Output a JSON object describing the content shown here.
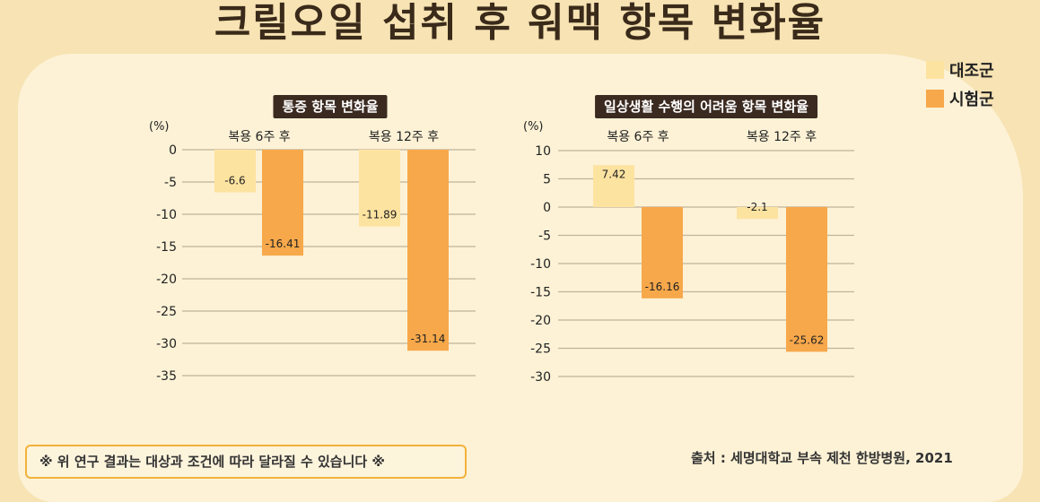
{
  "title": "크릴오일 섭취 후 워맥 항목 변화율",
  "legend": [
    {
      "label": "대조군",
      "color": "#fde3a0"
    },
    {
      "label": "시험군",
      "color": "#f7a84a"
    }
  ],
  "note": "※ 위 연구 결과는 대상과 조건에 따라 달라질 수 있습니다 ※",
  "source": "출처 : 세명대학교 부속 제천 한방병원, 2021",
  "chart_data": [
    {
      "type": "bar",
      "title": "통증 항목 변화율",
      "unit": "(%)",
      "categories": [
        "복용 6주 후",
        "복용 12주 후"
      ],
      "series": [
        {
          "name": "대조군",
          "values": [
            -6.6,
            -11.89
          ],
          "labels": [
            "-6.6",
            "-11.89"
          ]
        },
        {
          "name": "시험군",
          "values": [
            -16.41,
            -31.14
          ],
          "labels": [
            "-16.41",
            "-31.14"
          ]
        }
      ],
      "ylim": [
        -35,
        0
      ],
      "yticks": [
        0,
        -5,
        -10,
        -15,
        -20,
        -25,
        -30,
        -35
      ],
      "grid": true
    },
    {
      "type": "bar",
      "title": "일상생활 수행의 어려움 항목 변화율",
      "unit": "(%)",
      "categories": [
        "복용 6주 후",
        "복용 12주 후"
      ],
      "series": [
        {
          "name": "대조군",
          "values": [
            7.42,
            -2.1
          ],
          "labels": [
            "7.42",
            "-2.1"
          ]
        },
        {
          "name": "시험군",
          "values": [
            -16.16,
            -25.62
          ],
          "labels": [
            "-16.16",
            "-25.62"
          ]
        }
      ],
      "ylim": [
        -30,
        10
      ],
      "yticks": [
        10,
        5,
        0,
        -5,
        -10,
        -15,
        -20,
        -25,
        -30
      ],
      "grid": true
    }
  ]
}
